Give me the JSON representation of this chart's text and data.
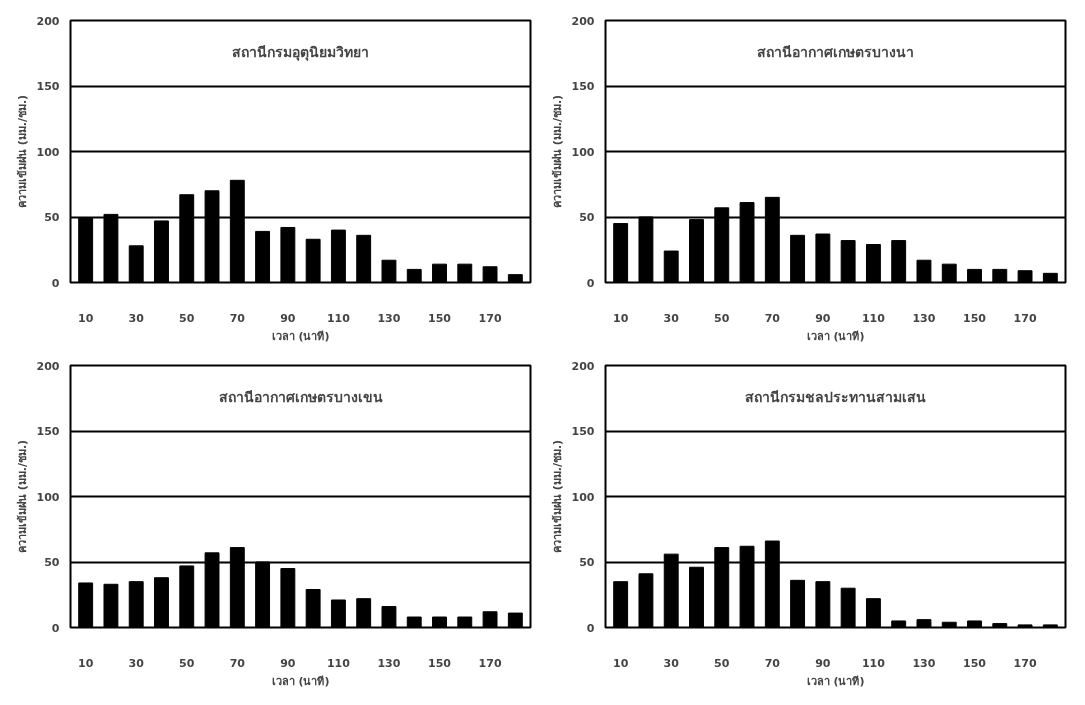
{
  "chart_data": [
    {
      "type": "bar",
      "title": "สถานีกรมอุตุนิยมวิทยา",
      "xlabel": "เวลา (นาที)",
      "ylabel": "ความเข้มฝน (มม./ชม.)",
      "categories": [
        "10",
        null,
        "30",
        null,
        "50",
        null,
        "70",
        null,
        "90",
        null,
        "110",
        null,
        "130",
        null,
        "150",
        null,
        "170",
        null
      ],
      "values": [
        49,
        52,
        28,
        47,
        67,
        70,
        78,
        39,
        42,
        33,
        40,
        36,
        17,
        10,
        14,
        14,
        12,
        6
      ],
      "color": "#000000",
      "ylim": [
        0,
        200
      ],
      "yticks": [
        0,
        50,
        100,
        150,
        200
      ],
      "grid": "y"
    },
    {
      "type": "bar",
      "title": "สถานีอากาศเกษตรบางนา",
      "xlabel": "เวลา (นาที)",
      "ylabel": "ความเข้มฝน (มม./ชม.)",
      "categories": [
        "10",
        null,
        "30",
        null,
        "50",
        null,
        "70",
        null,
        "90",
        null,
        "110",
        null,
        "130",
        null,
        "150",
        null,
        "170",
        null
      ],
      "values": [
        45,
        50,
        24,
        48,
        57,
        61,
        65,
        36,
        37,
        32,
        29,
        32,
        17,
        14,
        10,
        10,
        9,
        7
      ],
      "color": "#000000",
      "ylim": [
        0,
        200
      ],
      "yticks": [
        0,
        50,
        100,
        150,
        200
      ],
      "grid": "y"
    },
    {
      "type": "bar",
      "title": "สถานีอากาศเกษตรบางเขน",
      "xlabel": "เวลา (นาที)",
      "ylabel": "ความเข้มฝน (มม./ชม.)",
      "categories": [
        "10",
        null,
        "30",
        null,
        "50",
        null,
        "70",
        null,
        "90",
        null,
        "110",
        null,
        "130",
        null,
        "150",
        null,
        "170",
        null
      ],
      "values": [
        34,
        33,
        35,
        38,
        47,
        57,
        61,
        50,
        45,
        29,
        21,
        22,
        16,
        8,
        8,
        8,
        12,
        11
      ],
      "color": "#000000",
      "ylim": [
        0,
        200
      ],
      "yticks": [
        0,
        50,
        100,
        150,
        200
      ],
      "grid": "y"
    },
    {
      "type": "bar",
      "title": "สถานีกรมชลประทานสามเสน",
      "xlabel": "เวลา (นาที)",
      "ylabel": "ความเข้มฝน (มม./ชม.)",
      "categories": [
        "10",
        null,
        "30",
        null,
        "50",
        null,
        "70",
        null,
        "90",
        null,
        "110",
        null,
        "130",
        null,
        "150",
        null,
        "170",
        null
      ],
      "values": [
        35,
        41,
        56,
        46,
        61,
        62,
        66,
        36,
        35,
        30,
        22,
        5,
        6,
        4,
        5,
        3,
        2,
        2
      ],
      "color": "#000000",
      "ylim": [
        0,
        200
      ],
      "yticks": [
        0,
        50,
        100,
        150,
        200
      ],
      "grid": "y"
    }
  ]
}
